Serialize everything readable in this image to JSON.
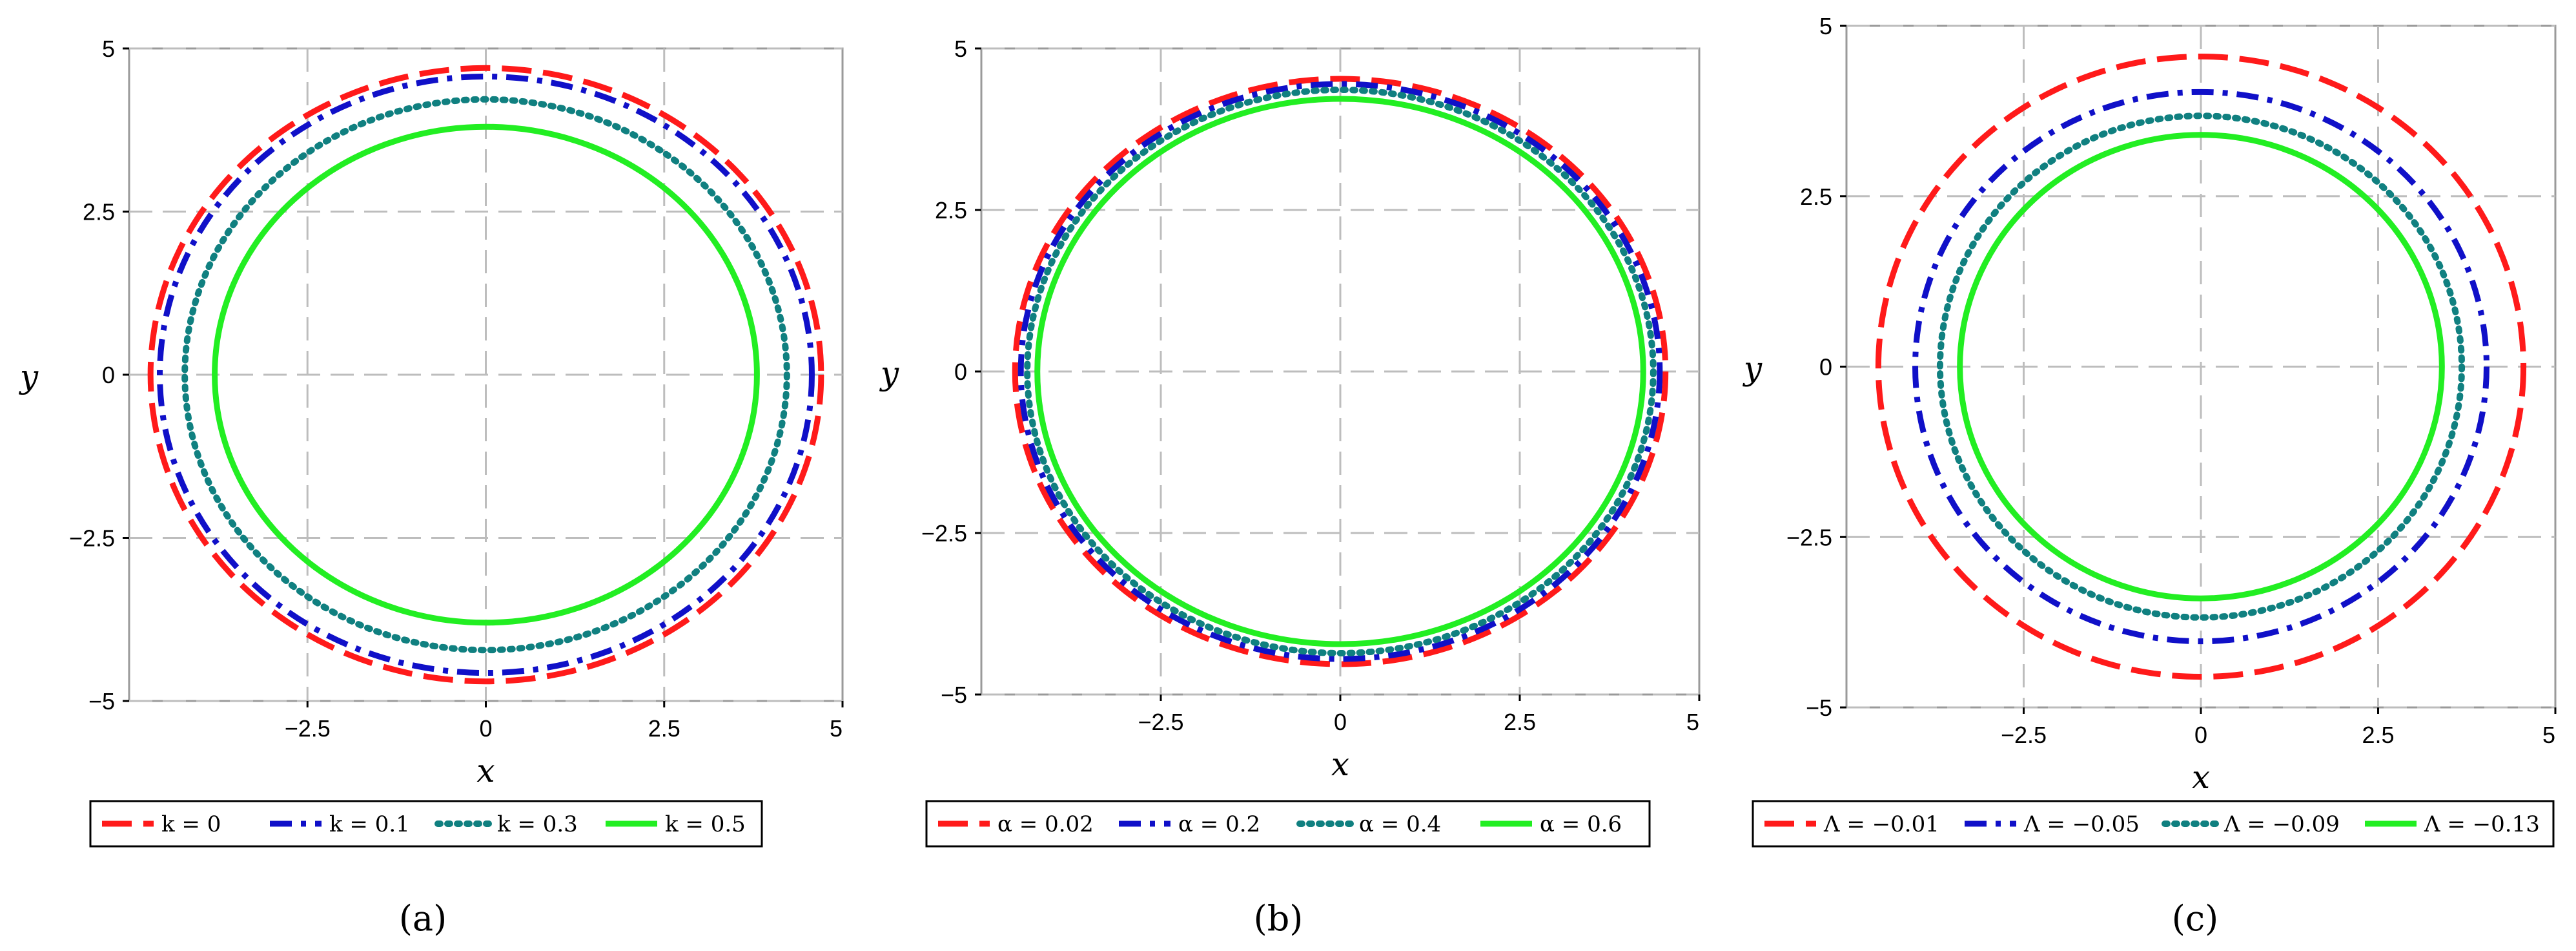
{
  "chart_data": [
    {
      "type": "line",
      "panel": "a",
      "caption": "(a)",
      "xlabel": "x",
      "ylabel": "y",
      "xlim": [
        -5,
        5
      ],
      "ylim": [
        -5,
        5
      ],
      "xticks": [
        "−2.5",
        "0",
        "2.5",
        "5"
      ],
      "yticks": [
        "5",
        "2.5",
        "0",
        "−2.5",
        "−5"
      ],
      "grid": true,
      "legend": "bottom",
      "series": [
        {
          "name": "k = 0",
          "radius": 4.7,
          "color": "#ff1a1a",
          "style": "dash"
        },
        {
          "name": "k = 0.1",
          "radius": 4.57,
          "color": "#1010c8",
          "style": "dashdot"
        },
        {
          "name": "k = 0.3",
          "radius": 4.22,
          "color": "#108080",
          "style": "dot"
        },
        {
          "name": "k = 0.5",
          "radius": 3.8,
          "color": "#22ee22",
          "style": "solid"
        }
      ]
    },
    {
      "type": "line",
      "panel": "b",
      "caption": "(b)",
      "xlabel": "x",
      "ylabel": "y",
      "xlim": [
        -5,
        5
      ],
      "ylim": [
        -5,
        5
      ],
      "xticks": [
        "−2.5",
        "0",
        "2.5",
        "5"
      ],
      "yticks": [
        "5",
        "2.5",
        "0",
        "−2.5",
        "−5"
      ],
      "grid": true,
      "legend": "bottom",
      "series": [
        {
          "name": "α = 0.02",
          "radius": 4.53,
          "color": "#ff1a1a",
          "style": "dash"
        },
        {
          "name": "α = 0.2",
          "radius": 4.45,
          "color": "#1010c8",
          "style": "dashdot"
        },
        {
          "name": "α = 0.4",
          "radius": 4.36,
          "color": "#108080",
          "style": "dot"
        },
        {
          "name": "α = 0.6",
          "radius": 4.22,
          "color": "#22ee22",
          "style": "solid"
        }
      ]
    },
    {
      "type": "line",
      "panel": "c",
      "caption": "(c)",
      "xlabel": "x",
      "ylabel": "y",
      "xlim": [
        -5,
        5
      ],
      "ylim": [
        -5,
        5
      ],
      "xticks": [
        "−2.5",
        "0",
        "2.5",
        "5"
      ],
      "yticks": [
        "5",
        "2.5",
        "0",
        "−2.5",
        "−5"
      ],
      "grid": true,
      "legend": "bottom",
      "series": [
        {
          "name": "Λ = −0.01",
          "radius": 4.55,
          "color": "#ff1a1a",
          "style": "dash"
        },
        {
          "name": "Λ = −0.05",
          "radius": 4.03,
          "color": "#1010c8",
          "style": "dashdot"
        },
        {
          "name": "Λ = −0.09",
          "radius": 3.68,
          "color": "#108080",
          "style": "dot"
        },
        {
          "name": "Λ = −0.13",
          "radius": 3.4,
          "color": "#22ee22",
          "style": "solid"
        }
      ]
    }
  ]
}
